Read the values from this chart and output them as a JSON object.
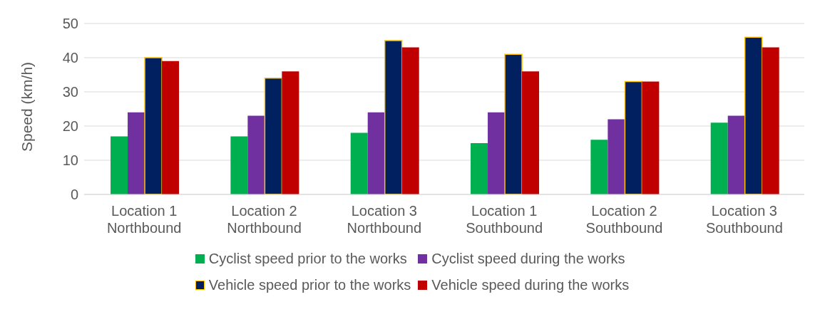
{
  "chart_data": {
    "type": "bar",
    "ylabel": "Speed (km/h)",
    "categories": [
      "Location 1\nNorthbound",
      "Location 2\nNorthbound",
      "Location 3\nNorthbound",
      "Location 1\nSouthbound",
      "Location 2\nSouthbound",
      "Location 3\nSouthbound"
    ],
    "series": [
      {
        "name": "Cyclist speed prior to the works",
        "color": "#00b050",
        "values": [
          17,
          17,
          18,
          15,
          16,
          21
        ]
      },
      {
        "name": "Cyclist speed during the works",
        "color": "#7030a0",
        "values": [
          24,
          23,
          24,
          24,
          22,
          23
        ]
      },
      {
        "name": "Vehicle speed prior to the works",
        "color": "#002060",
        "values": [
          40,
          34,
          45,
          41,
          33,
          46
        ]
      },
      {
        "name": "Vehicle speed during the works",
        "color": "#c00000",
        "values": [
          39,
          36,
          43,
          36,
          33,
          43
        ]
      }
    ],
    "ylim": [
      0,
      50
    ],
    "yticks": [
      0,
      10,
      20,
      30,
      40,
      50
    ],
    "grid": "y",
    "legend": "bottom"
  }
}
